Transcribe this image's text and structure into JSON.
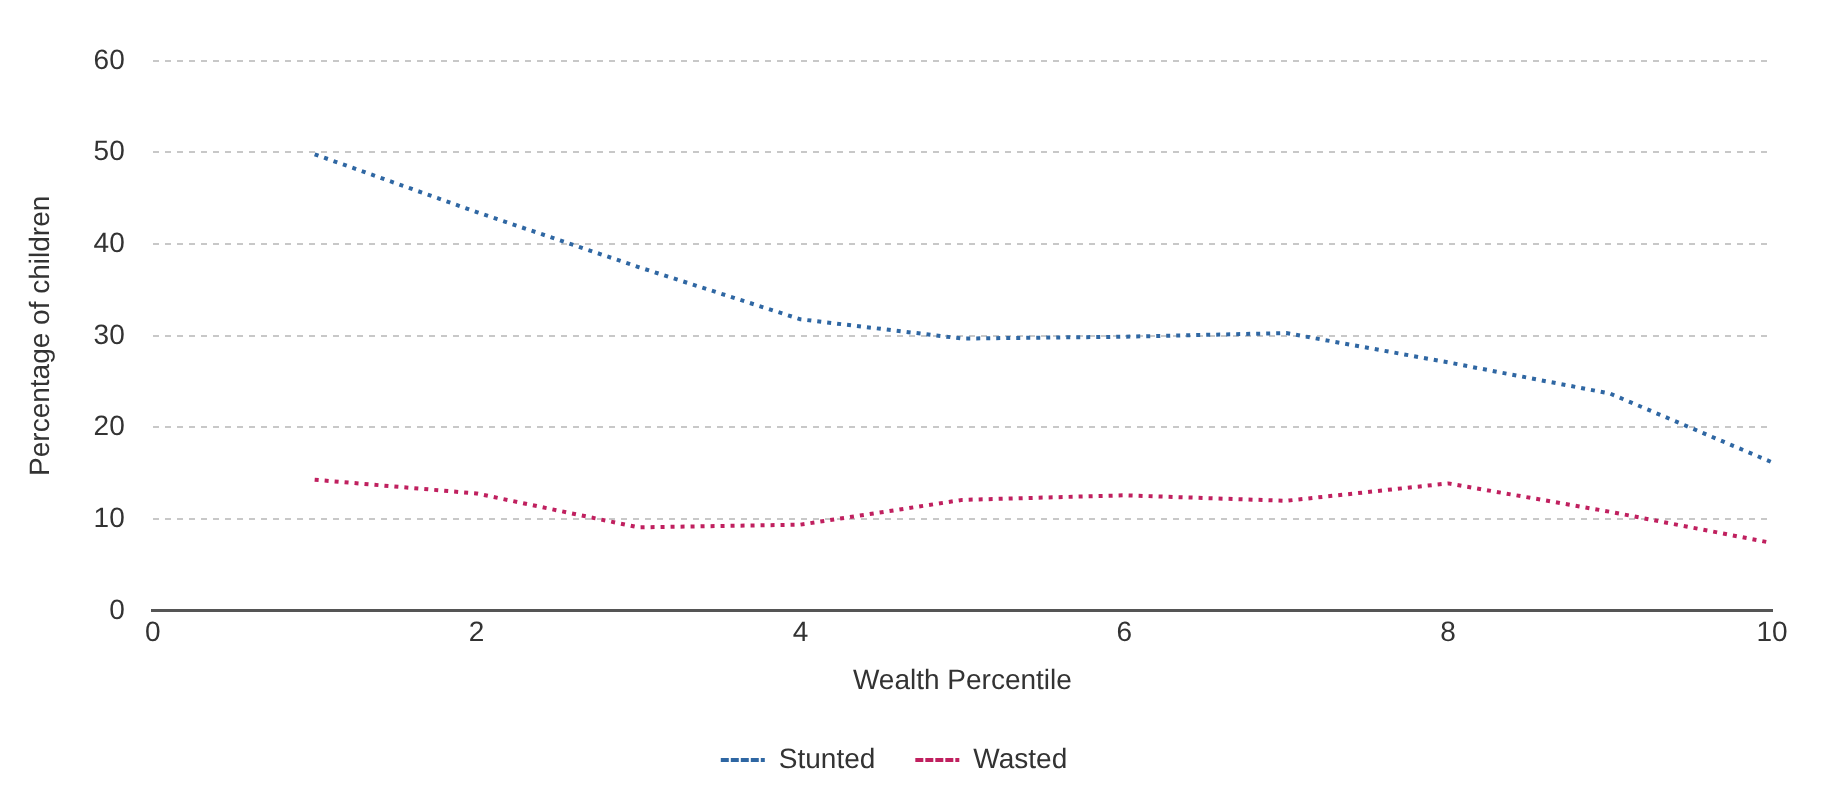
{
  "chart_data": {
    "type": "line",
    "xlabel": "Wealth Percentile",
    "ylabel": "Percentage of children",
    "x": [
      1,
      2,
      3,
      4,
      5,
      6,
      7,
      8,
      9,
      10
    ],
    "series": [
      {
        "name": "Stunted",
        "color": "#2f67a3",
        "values": [
          49.8,
          43.5,
          37.5,
          31.8,
          29.7,
          29.9,
          30.3,
          27.1,
          23.7,
          16.2
        ]
      },
      {
        "name": "Wasted",
        "color": "#c0205f",
        "values": [
          14.3,
          12.8,
          9.1,
          9.4,
          12.1,
          12.6,
          12.0,
          13.9,
          10.8,
          7.4
        ]
      }
    ],
    "xlim": [
      0,
      10
    ],
    "xticks": [
      0,
      2,
      4,
      6,
      8,
      10
    ],
    "ylim": [
      0,
      60
    ],
    "yticks": [
      0,
      10,
      20,
      30,
      40,
      50,
      60
    ],
    "grid": "y",
    "legend": "bottom",
    "line_style": "dotted",
    "marker": "none"
  }
}
